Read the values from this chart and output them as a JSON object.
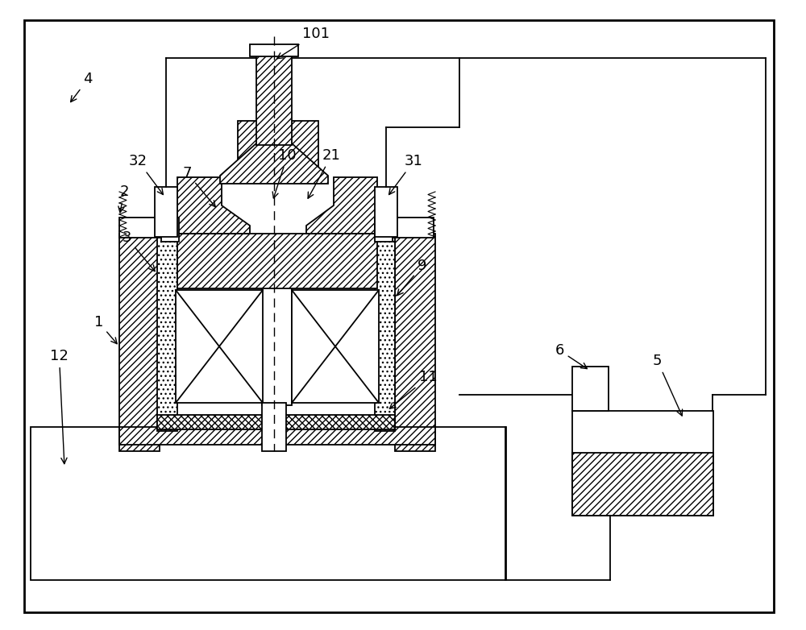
{
  "bg_color": "#ffffff",
  "lw": 1.3,
  "lw_thick": 2.0,
  "figsize": [
    10.0,
    7.82
  ],
  "dpi": 100
}
